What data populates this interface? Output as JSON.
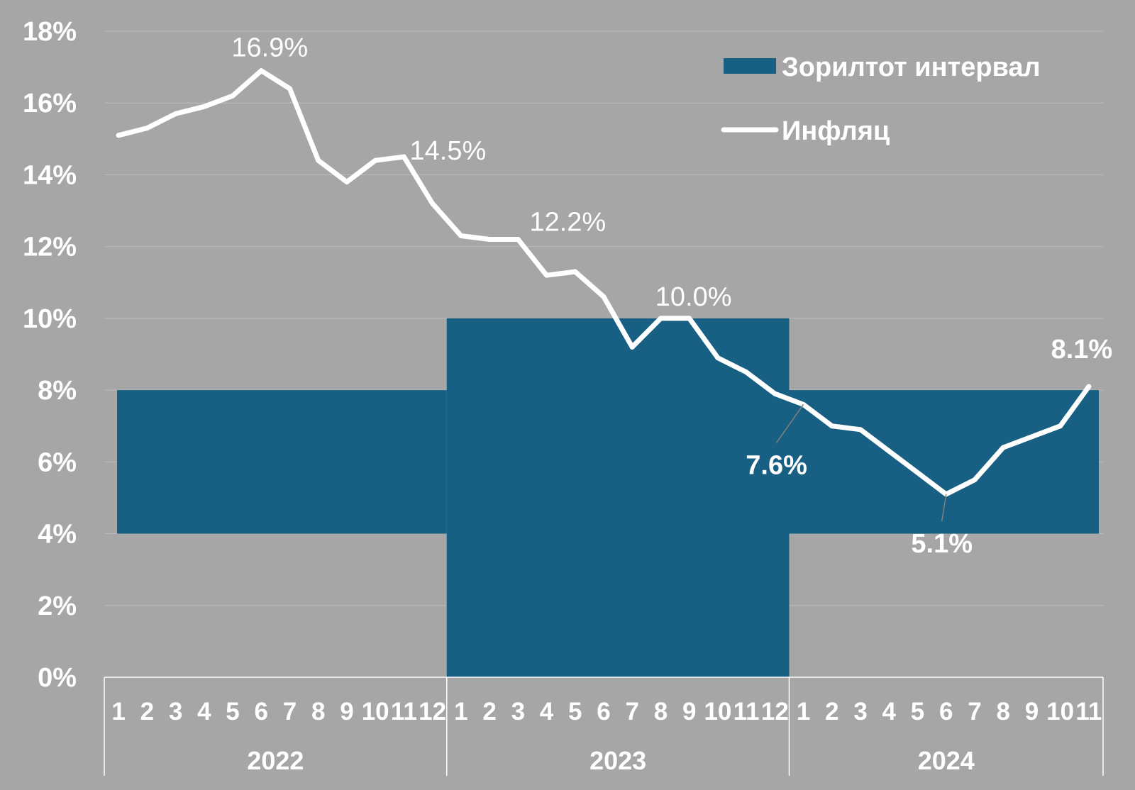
{
  "colors": {
    "background": "#a6a6a6",
    "target_fill": "#176083",
    "line": "#ffffff",
    "grid": "#b8b8b8"
  },
  "chart_data": {
    "type": "line",
    "title": "",
    "xlabel": "",
    "ylabel": "",
    "ylim": [
      0,
      18
    ],
    "y_ticks": [
      "0%",
      "2%",
      "4%",
      "6%",
      "8%",
      "10%",
      "12%",
      "14%",
      "16%",
      "18%"
    ],
    "grid": true,
    "legend_position": "top-right",
    "years": [
      {
        "label": "2022",
        "months": [
          "1",
          "2",
          "3",
          "4",
          "5",
          "6",
          "7",
          "8",
          "9",
          "10",
          "11",
          "12"
        ]
      },
      {
        "label": "2023",
        "months": [
          "1",
          "2",
          "3",
          "4",
          "5",
          "6",
          "7",
          "8",
          "9",
          "10",
          "11",
          "12"
        ]
      },
      {
        "label": "2024",
        "months": [
          "1",
          "2",
          "3",
          "4",
          "5",
          "6",
          "7",
          "8",
          "9",
          "10",
          "11"
        ]
      }
    ],
    "series": [
      {
        "name": "Зорилтот интервал",
        "type": "range-band",
        "color": "#176083",
        "ranges": [
          {
            "year": "2022",
            "low": 4,
            "high": 8
          },
          {
            "year": "2023",
            "low": 0,
            "high": 10
          },
          {
            "year": "2024",
            "low": 4,
            "high": 8
          }
        ]
      },
      {
        "name": "Инфляц",
        "type": "line",
        "color": "#ffffff",
        "values": [
          15.1,
          15.3,
          15.7,
          15.9,
          16.2,
          16.9,
          16.4,
          14.4,
          13.8,
          14.4,
          14.5,
          13.2,
          12.3,
          12.2,
          12.2,
          11.2,
          11.3,
          10.6,
          9.2,
          10.0,
          10.0,
          8.9,
          8.5,
          7.9,
          7.6,
          7.0,
          6.9,
          6.3,
          5.7,
          5.1,
          5.5,
          6.4,
          6.7,
          7.0,
          8.1
        ]
      }
    ],
    "annotations": [
      {
        "index": 5,
        "text": "16.9%",
        "bold": false
      },
      {
        "index": 10,
        "text": "14.5%",
        "bold": false
      },
      {
        "index": 14,
        "text": "12.2%",
        "bold": false
      },
      {
        "index": 20,
        "text": "10.0%",
        "bold": false
      },
      {
        "index": 24,
        "text": "7.6%",
        "bold": true
      },
      {
        "index": 29,
        "text": "5.1%",
        "bold": true
      },
      {
        "index": 34,
        "text": "8.1%",
        "bold": true
      }
    ]
  }
}
